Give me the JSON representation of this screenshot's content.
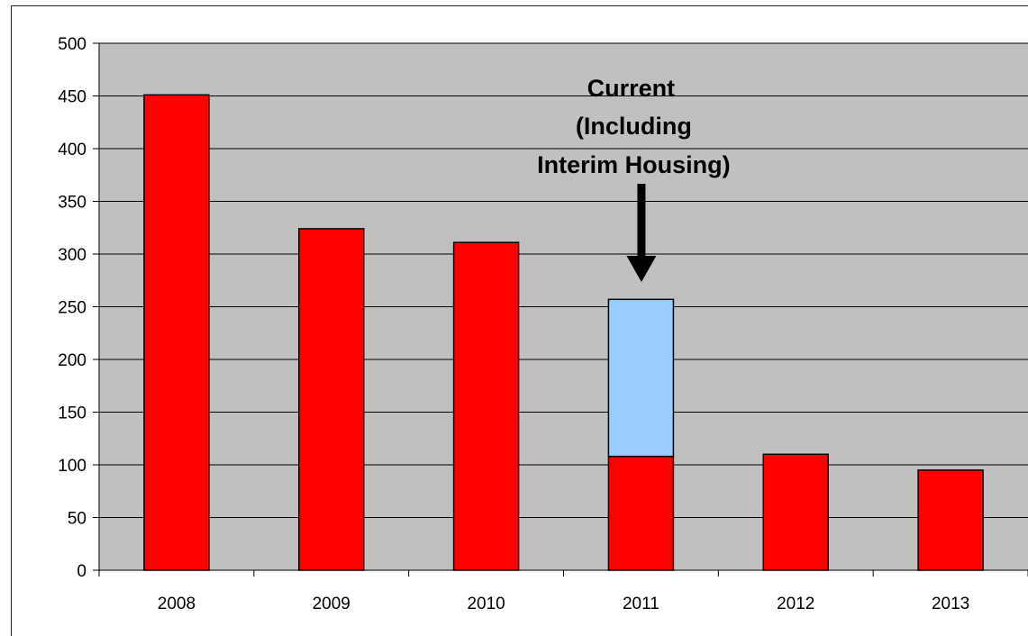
{
  "chart_data": {
    "type": "bar",
    "stacked": true,
    "categories": [
      "2008",
      "2009",
      "2010",
      "2011",
      "2012",
      "2013"
    ],
    "series": [
      {
        "values": [
          451,
          324,
          311,
          108,
          110,
          95
        ],
        "color": "#ff0000"
      },
      {
        "values": [
          0,
          0,
          0,
          149,
          0,
          0
        ],
        "color": "#99ccff"
      }
    ],
    "title": "",
    "xlabel": "",
    "ylabel": "",
    "ylim": [
      0,
      500
    ],
    "yticks": [
      0,
      50,
      100,
      150,
      200,
      250,
      300,
      350,
      400,
      450,
      500
    ],
    "grid": true,
    "plot_background": "#c0c0c0",
    "gridline_color": "#000000",
    "legend": "none",
    "annotations": [
      {
        "lines": [
          "Current",
          "(Including",
          "Interim Housing)"
        ],
        "category": "2011",
        "arrow": "down",
        "color": "#000000"
      }
    ]
  }
}
